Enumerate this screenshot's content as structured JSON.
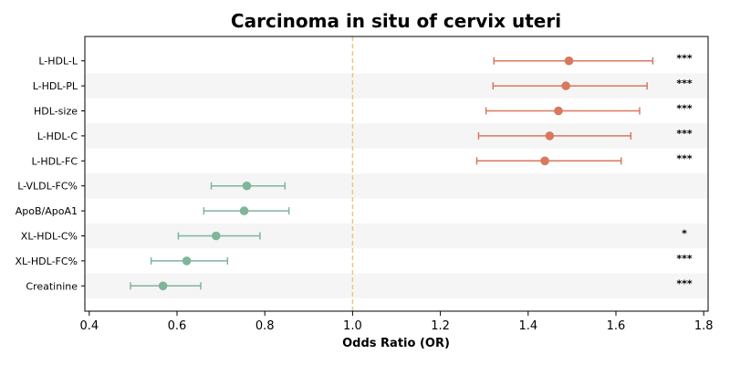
{
  "chart_data": {
    "type": "forest",
    "title": "Carcinoma in situ of cervix uteri",
    "xlabel": "Odds Ratio (OR)",
    "ylabel": "",
    "xlim": [
      0.39,
      1.81
    ],
    "xticks": [
      "0.4",
      "0.6",
      "0.8",
      "1.0",
      "1.2",
      "1.4",
      "1.6",
      "1.8"
    ],
    "reference_line": 1.0,
    "row_stripes": true,
    "colors": {
      "risk": "#d9785e",
      "protective": "#7fb59a",
      "reference": "#f0c57a",
      "stripe": "#f5f5f5",
      "axis": "#000000"
    },
    "rows": [
      {
        "label": "L-HDL-L",
        "or": 1.493,
        "lower": 1.322,
        "upper": 1.684,
        "sig": "***",
        "group": "risk"
      },
      {
        "label": "L-HDL-PL",
        "or": 1.486,
        "lower": 1.32,
        "upper": 1.671,
        "sig": "***",
        "group": "risk"
      },
      {
        "label": "HDL-size",
        "or": 1.469,
        "lower": 1.304,
        "upper": 1.654,
        "sig": "***",
        "group": "risk"
      },
      {
        "label": "L-HDL-C",
        "or": 1.449,
        "lower": 1.287,
        "upper": 1.634,
        "sig": "***",
        "group": "risk"
      },
      {
        "label": "L-HDL-FC",
        "or": 1.438,
        "lower": 1.283,
        "upper": 1.612,
        "sig": "***",
        "group": "risk"
      },
      {
        "label": "L-VLDL-FC%",
        "or": 0.759,
        "lower": 0.678,
        "upper": 0.846,
        "sig": "",
        "group": "protective"
      },
      {
        "label": "ApoB/ApoA1",
        "or": 0.753,
        "lower": 0.661,
        "upper": 0.855,
        "sig": "",
        "group": "protective"
      },
      {
        "label": "XL-HDL-C%",
        "or": 0.689,
        "lower": 0.603,
        "upper": 0.789,
        "sig": "*",
        "group": "protective"
      },
      {
        "label": "XL-HDL-FC%",
        "or": 0.622,
        "lower": 0.541,
        "upper": 0.715,
        "sig": "***",
        "group": "protective"
      },
      {
        "label": "Creatinine",
        "or": 0.568,
        "lower": 0.494,
        "upper": 0.654,
        "sig": "***",
        "group": "protective"
      }
    ]
  }
}
